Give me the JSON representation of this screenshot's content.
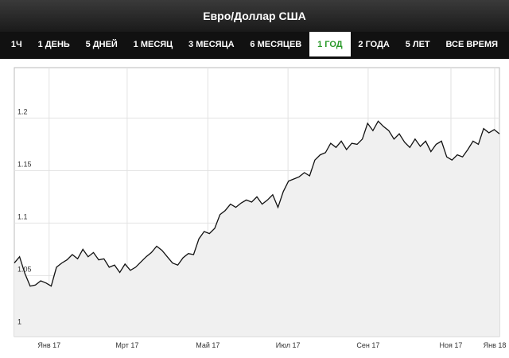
{
  "header": {
    "title": "Евро/Доллар США"
  },
  "tabs": {
    "items": [
      "1Ч",
      "1 ДЕНЬ",
      "5 ДНЕЙ",
      "1 МЕСЯЦ",
      "3 МЕСЯЦА",
      "6 МЕСЯЦЕВ",
      "1 ГОД",
      "2 ГОДА",
      "5 ЛЕТ",
      "ВСЕ ВРЕМЯ"
    ],
    "active": 6
  },
  "chart_data": {
    "type": "area",
    "values": [
      1.062,
      1.068,
      1.052,
      1.04,
      1.041,
      1.045,
      1.043,
      1.04,
      1.058,
      1.062,
      1.065,
      1.07,
      1.066,
      1.075,
      1.068,
      1.072,
      1.065,
      1.066,
      1.058,
      1.06,
      1.053,
      1.061,
      1.055,
      1.058,
      1.063,
      1.068,
      1.072,
      1.078,
      1.074,
      1.068,
      1.062,
      1.06,
      1.067,
      1.071,
      1.07,
      1.085,
      1.092,
      1.09,
      1.095,
      1.108,
      1.112,
      1.118,
      1.115,
      1.119,
      1.122,
      1.12,
      1.125,
      1.118,
      1.122,
      1.127,
      1.115,
      1.13,
      1.14,
      1.142,
      1.144,
      1.148,
      1.145,
      1.16,
      1.165,
      1.167,
      1.176,
      1.172,
      1.178,
      1.17,
      1.176,
      1.175,
      1.18,
      1.195,
      1.188,
      1.197,
      1.192,
      1.188,
      1.18,
      1.185,
      1.177,
      1.172,
      1.18,
      1.173,
      1.178,
      1.168,
      1.175,
      1.178,
      1.163,
      1.16,
      1.165,
      1.163,
      1.17,
      1.178,
      1.175,
      1.19,
      1.186,
      1.189,
      1.185
    ],
    "color": "#111111",
    "area_color": "#f0f0f0",
    "xlim": [
      0,
      92
    ],
    "xticks": [
      {
        "value": 6.6,
        "label": "Янв 17"
      },
      {
        "value": 21.4,
        "label": "Мрт 17"
      },
      {
        "value": 36.7,
        "label": "Май 17"
      },
      {
        "value": 51.9,
        "label": "Июл 17"
      },
      {
        "value": 67.1,
        "label": "Сен 17"
      },
      {
        "value": 82.8,
        "label": "Ноя 17"
      },
      {
        "value": 91.1,
        "label": "Янв 18"
      }
    ],
    "ylim": [
      0.992,
      1.248
    ],
    "yticks": [
      1,
      1.05,
      1.1,
      1.15,
      1.2
    ],
    "grid": true
  }
}
